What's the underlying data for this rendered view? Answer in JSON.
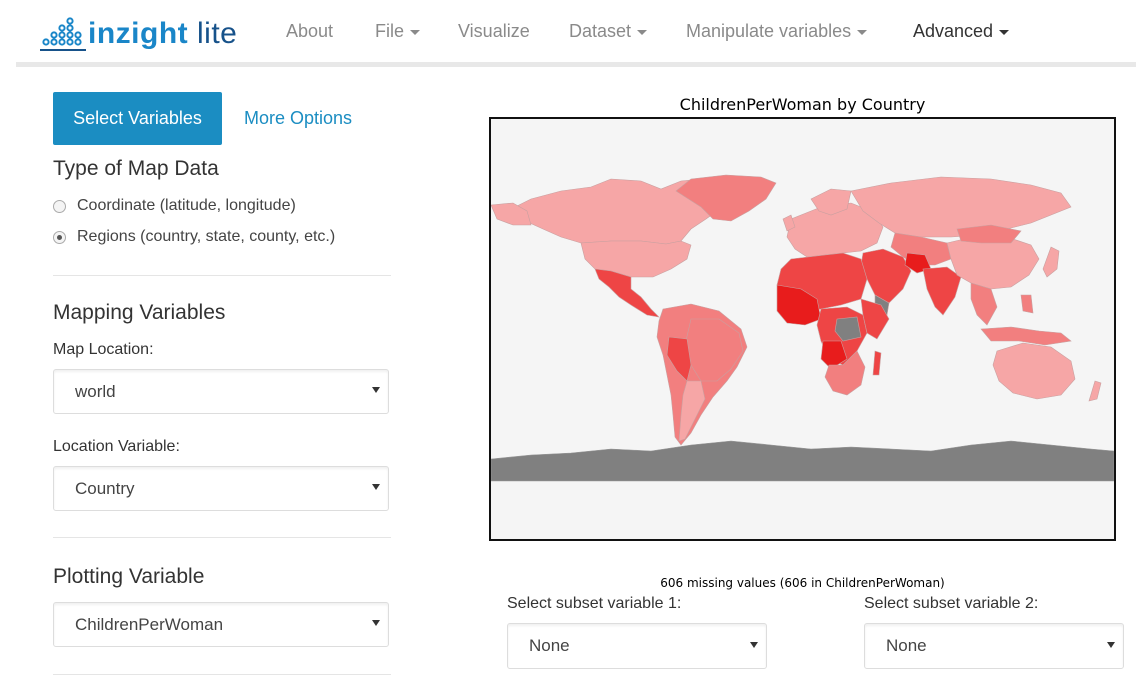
{
  "app": {
    "logo_main": "inzight",
    "logo_sub": "lite",
    "nav": [
      {
        "label": "About",
        "dropdown": false
      },
      {
        "label": "File",
        "dropdown": true
      },
      {
        "label": "Visualize",
        "dropdown": false
      },
      {
        "label": "Dataset",
        "dropdown": true
      },
      {
        "label": "Manipulate variables",
        "dropdown": true
      },
      {
        "label": "Advanced",
        "dropdown": true
      }
    ]
  },
  "sidebar": {
    "select_variables_button": "Select Variables",
    "more_options_link": "More Options",
    "type_heading": "Type of Map Data",
    "radio_options": [
      {
        "label": "Coordinate (latitude, longitude)",
        "selected": false
      },
      {
        "label": "Regions (country, state, county, etc.)",
        "selected": true
      }
    ],
    "mapping_heading": "Mapping Variables",
    "map_location_label": "Map Location:",
    "map_location_value": "world",
    "location_variable_label": "Location Variable:",
    "location_variable_value": "Country",
    "plotting_heading": "Plotting Variable",
    "plotting_variable_value": "ChildrenPerWoman"
  },
  "plot": {
    "title": "ChildrenPerWoman by Country",
    "missing_note": "606 missing values (606 in ChildrenPerWoman)",
    "colors": {
      "background": "#f5f5f5",
      "missing_gray": "#808080",
      "low": "#f6a6a6",
      "mid": "#f27f7f",
      "high": "#ee4545",
      "highest": "#e81c1c"
    }
  },
  "subset": {
    "label1": "Select subset variable 1:",
    "value1": "None",
    "label2": "Select subset variable 2:",
    "value2": "None"
  }
}
